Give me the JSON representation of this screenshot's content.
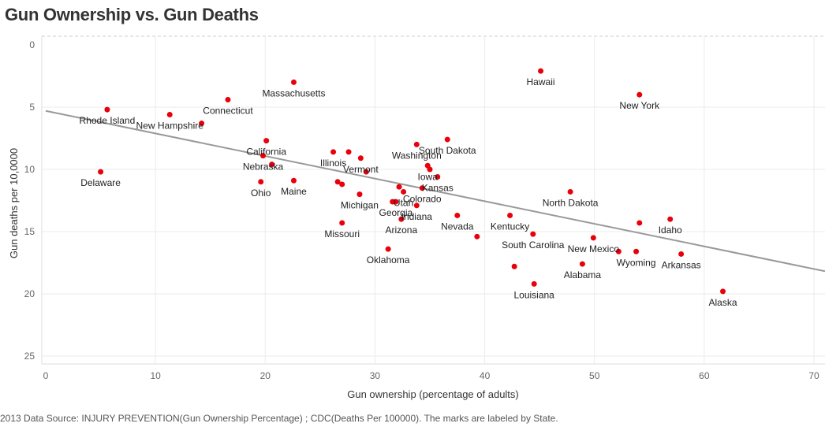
{
  "title": "Gun Ownership vs. Gun Deaths",
  "footnote": "2013 Data Source: INJURY PREVENTION(Gun Ownership Percentage) ; CDC(Deaths Per 100000).  The marks are labeled by State.",
  "colors": {
    "point": "#e8000b",
    "trend": "#999999",
    "grid": "#ebebeb",
    "axis_line": "#cccccc"
  },
  "chart_data": {
    "type": "scatter",
    "title": "Gun Ownership vs. Gun Deaths",
    "xlabel": "Gun ownership (percentage of adults)",
    "ylabel": "Gun deaths per 10,0000",
    "xlim": [
      0,
      70
    ],
    "ylim": [
      0,
      25
    ],
    "y_reversed": true,
    "x_ticks": [
      0,
      10,
      20,
      30,
      40,
      50,
      60,
      70
    ],
    "y_ticks": [
      0,
      5,
      10,
      15,
      20,
      25
    ],
    "grid": true,
    "trend_line": {
      "x": [
        0,
        70
      ],
      "y": [
        5.3,
        18.0
      ]
    },
    "points": [
      {
        "x": 5.6,
        "y": 5.2,
        "label": "Rhode Island"
      },
      {
        "x": 5.0,
        "y": 10.2,
        "label": "Delaware"
      },
      {
        "x": 11.3,
        "y": 5.6,
        "label": "New Hampshire"
      },
      {
        "x": 14.2,
        "y": 6.3,
        "label": ""
      },
      {
        "x": 16.6,
        "y": 4.4,
        "label": "Connecticut"
      },
      {
        "x": 22.6,
        "y": 3.0,
        "label": "Massachusetts"
      },
      {
        "x": 20.1,
        "y": 7.7,
        "label": "California"
      },
      {
        "x": 19.8,
        "y": 8.9,
        "label": "Nebraska"
      },
      {
        "x": 20.6,
        "y": 9.6,
        "label": ""
      },
      {
        "x": 19.6,
        "y": 11.0,
        "label": "Ohio"
      },
      {
        "x": 22.6,
        "y": 10.9,
        "label": "Maine"
      },
      {
        "x": 26.2,
        "y": 8.6,
        "label": "Illinois"
      },
      {
        "x": 27.6,
        "y": 8.6,
        "label": ""
      },
      {
        "x": 28.7,
        "y": 9.1,
        "label": "Vermont"
      },
      {
        "x": 26.6,
        "y": 11.0,
        "label": ""
      },
      {
        "x": 27.0,
        "y": 11.2,
        "label": ""
      },
      {
        "x": 28.6,
        "y": 12.0,
        "label": "Michigan"
      },
      {
        "x": 29.2,
        "y": 10.2,
        "label": ""
      },
      {
        "x": 33.8,
        "y": 8.0,
        "label": "Washington"
      },
      {
        "x": 34.8,
        "y": 9.7,
        "label": "Iowa"
      },
      {
        "x": 35.0,
        "y": 10.0,
        "label": ""
      },
      {
        "x": 36.6,
        "y": 7.6,
        "label": "South Dakota"
      },
      {
        "x": 35.7,
        "y": 10.6,
        "label": "Kansas"
      },
      {
        "x": 32.2,
        "y": 11.4,
        "label": ""
      },
      {
        "x": 32.6,
        "y": 11.8,
        "label": "Utah"
      },
      {
        "x": 34.3,
        "y": 11.5,
        "label": "Colorado"
      },
      {
        "x": 31.6,
        "y": 12.6,
        "label": ""
      },
      {
        "x": 31.9,
        "y": 12.6,
        "label": "Georgia"
      },
      {
        "x": 33.8,
        "y": 12.9,
        "label": "Indiana"
      },
      {
        "x": 27.0,
        "y": 14.3,
        "label": "Missouri"
      },
      {
        "x": 32.4,
        "y": 14.0,
        "label": "Arizona"
      },
      {
        "x": 37.5,
        "y": 13.7,
        "label": "Nevada"
      },
      {
        "x": 31.2,
        "y": 16.4,
        "label": "Oklahoma"
      },
      {
        "x": 39.3,
        "y": 15.4,
        "label": ""
      },
      {
        "x": 42.3,
        "y": 13.7,
        "label": "Kentucky"
      },
      {
        "x": 44.4,
        "y": 15.2,
        "label": "South Carolina"
      },
      {
        "x": 47.8,
        "y": 11.8,
        "label": "North Dakota"
      },
      {
        "x": 42.7,
        "y": 17.8,
        "label": ""
      },
      {
        "x": 44.5,
        "y": 19.2,
        "label": "Louisiana"
      },
      {
        "x": 48.9,
        "y": 17.6,
        "label": "Alabama"
      },
      {
        "x": 49.9,
        "y": 15.5,
        "label": "New Mexico"
      },
      {
        "x": 52.2,
        "y": 16.6,
        "label": ""
      },
      {
        "x": 53.8,
        "y": 16.6,
        "label": "Wyoming"
      },
      {
        "x": 54.1,
        "y": 14.3,
        "label": ""
      },
      {
        "x": 56.9,
        "y": 14.0,
        "label": "Idaho"
      },
      {
        "x": 57.9,
        "y": 16.8,
        "label": "Arkansas"
      },
      {
        "x": 61.7,
        "y": 19.8,
        "label": "Alaska"
      },
      {
        "x": 45.1,
        "y": 2.1,
        "label": "Hawaii"
      },
      {
        "x": 54.1,
        "y": 4.0,
        "label": "New York"
      }
    ]
  }
}
